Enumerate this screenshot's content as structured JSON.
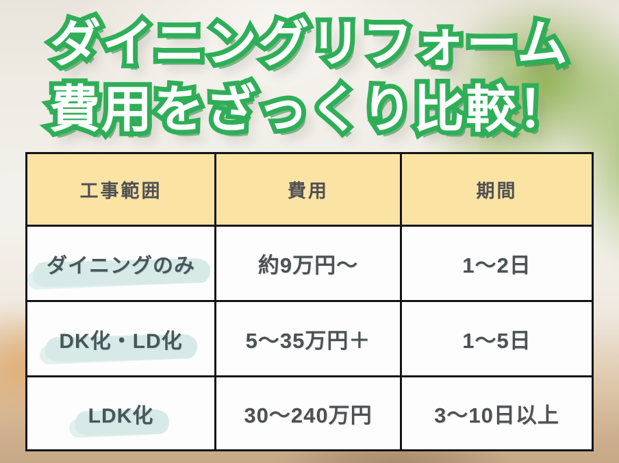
{
  "title": {
    "line1": "ダイニングリフォーム",
    "line2": "費用をざっくり比較！"
  },
  "table": {
    "headers": [
      "工事範囲",
      "費用",
      "期間"
    ],
    "rows": [
      {
        "scope": "ダイニングのみ",
        "cost": "約9万円〜",
        "duration": "1〜2日"
      },
      {
        "scope": "DK化・LD化",
        "cost": "5〜35万円＋",
        "duration": "1〜5日"
      },
      {
        "scope": "LDK化",
        "cost": "30〜240万円",
        "duration": "3〜10日以上"
      }
    ]
  },
  "colors": {
    "title_green": "#2fae58",
    "title_fill": "#ffffff",
    "header_bg": "#fbe3a4",
    "cell_bg": "#fdfdfd",
    "border": "#141414",
    "highlight": "#d7eae7",
    "text": "#4c5153",
    "floor": "#c5a483"
  },
  "chart_data": {
    "type": "table",
    "title": "ダイニングリフォーム費用をざっくり比較！",
    "columns": [
      "工事範囲",
      "費用",
      "期間"
    ],
    "rows": [
      [
        "ダイニングのみ",
        "約9万円〜",
        "1〜2日"
      ],
      [
        "DK化・LD化",
        "5〜35万円＋",
        "1〜5日"
      ],
      [
        "LDK化",
        "30〜240万円",
        "3〜10日以上"
      ]
    ]
  }
}
